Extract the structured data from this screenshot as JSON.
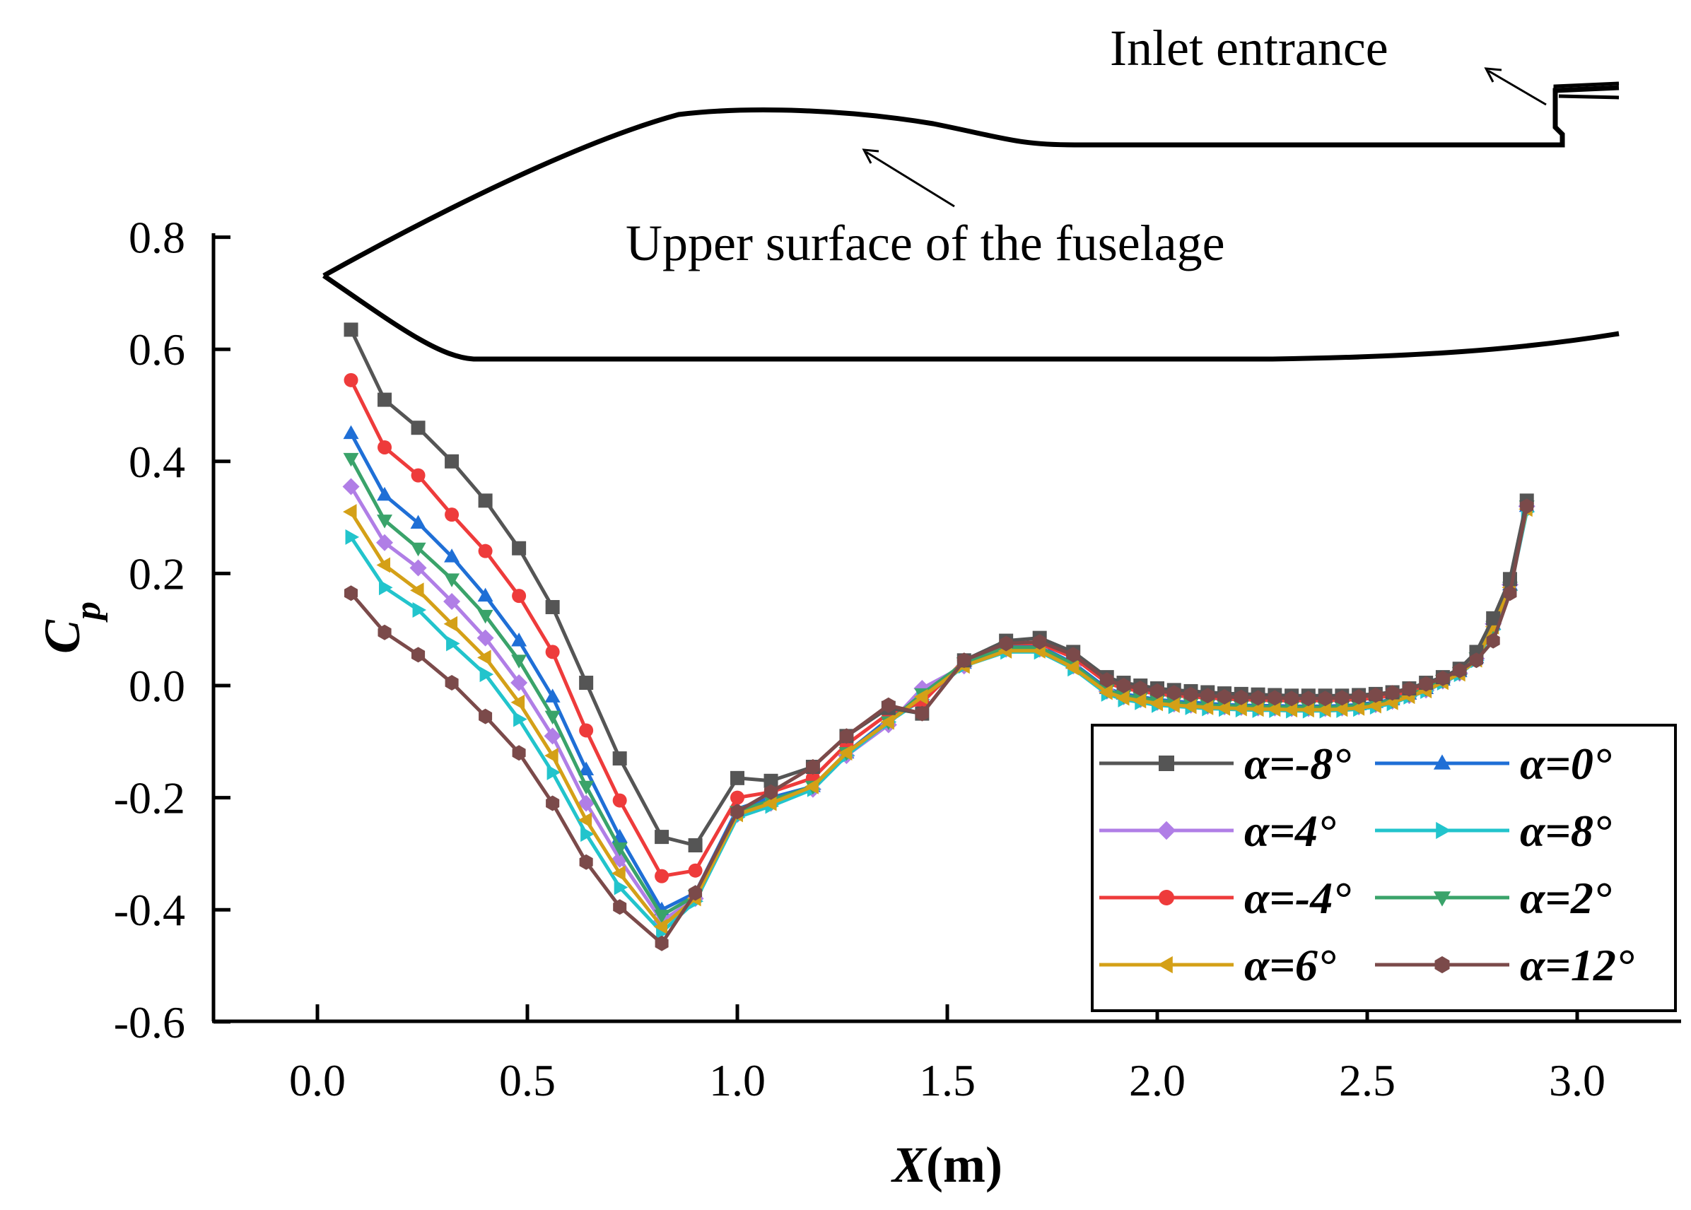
{
  "chart_data": {
    "type": "line",
    "title": "",
    "xlabel": "X(m)",
    "ylabel": "Cp",
    "xlim": [
      -0.25,
      3.25
    ],
    "ylim": [
      -0.6,
      0.8
    ],
    "xticks": [
      "0.0",
      "0.5",
      "1.0",
      "1.5",
      "2.0",
      "2.5",
      "3.0"
    ],
    "yticks": [
      "0.8",
      "0.6",
      "0.4",
      "0.2",
      "0.0",
      "-0.2",
      "-0.4",
      "-0.6"
    ],
    "annotations": {
      "upper_surface": "Upper surface of the fuselage",
      "inlet": "Inlet entrance"
    },
    "legend_position": "lower-right",
    "x": [
      0.08,
      0.16,
      0.24,
      0.32,
      0.4,
      0.48,
      0.56,
      0.64,
      0.72,
      0.82,
      0.9,
      1.0,
      1.08,
      1.18,
      1.26,
      1.36,
      1.44,
      1.54,
      1.64,
      1.72,
      1.8,
      1.88,
      1.92,
      1.96,
      2.0,
      2.04,
      2.08,
      2.12,
      2.16,
      2.2,
      2.24,
      2.28,
      2.32,
      2.36,
      2.4,
      2.44,
      2.48,
      2.52,
      2.56,
      2.6,
      2.64,
      2.68,
      2.72,
      2.76,
      2.8,
      2.84,
      2.88
    ],
    "series": [
      {
        "name": "α=-8°",
        "color": "#555555",
        "marker": "square",
        "values": [
          0.635,
          0.51,
          0.46,
          0.4,
          0.33,
          0.245,
          0.14,
          0.005,
          -0.13,
          -0.27,
          -0.285,
          -0.165,
          -0.17,
          -0.145,
          -0.09,
          -0.04,
          -0.05,
          0.045,
          0.08,
          0.085,
          0.06,
          0.015,
          0.005,
          0.0,
          -0.005,
          -0.008,
          -0.01,
          -0.012,
          -0.014,
          -0.015,
          -0.016,
          -0.017,
          -0.018,
          -0.018,
          -0.018,
          -0.018,
          -0.017,
          -0.015,
          -0.012,
          -0.005,
          0.005,
          0.015,
          0.03,
          0.06,
          0.12,
          0.19,
          0.33
        ]
      },
      {
        "name": "α=0°",
        "color": "#1f6fd6",
        "marker": "triangle-up",
        "values": [
          0.45,
          0.34,
          0.29,
          0.23,
          0.16,
          0.08,
          -0.02,
          -0.15,
          -0.27,
          -0.4,
          -0.37,
          -0.22,
          -0.2,
          -0.18,
          -0.12,
          -0.06,
          -0.02,
          0.04,
          0.07,
          0.07,
          0.04,
          -0.005,
          -0.015,
          -0.02,
          -0.025,
          -0.028,
          -0.03,
          -0.032,
          -0.034,
          -0.035,
          -0.036,
          -0.036,
          -0.037,
          -0.037,
          -0.037,
          -0.036,
          -0.034,
          -0.03,
          -0.025,
          -0.015,
          -0.005,
          0.01,
          0.025,
          0.05,
          0.11,
          0.18,
          0.32
        ]
      },
      {
        "name": "α=4°",
        "color": "#b07ee6",
        "marker": "diamond",
        "values": [
          0.355,
          0.255,
          0.21,
          0.15,
          0.085,
          0.005,
          -0.09,
          -0.21,
          -0.31,
          -0.42,
          -0.38,
          -0.23,
          -0.21,
          -0.185,
          -0.125,
          -0.07,
          -0.005,
          0.035,
          0.065,
          0.065,
          0.035,
          -0.01,
          -0.02,
          -0.025,
          -0.03,
          -0.033,
          -0.035,
          -0.037,
          -0.038,
          -0.039,
          -0.04,
          -0.04,
          -0.041,
          -0.041,
          -0.041,
          -0.04,
          -0.038,
          -0.034,
          -0.028,
          -0.018,
          -0.008,
          0.008,
          0.022,
          0.048,
          0.11,
          0.18,
          0.32
        ]
      },
      {
        "name": "α=8°",
        "color": "#22c4cc",
        "marker": "triangle-right",
        "values": [
          0.265,
          0.175,
          0.135,
          0.075,
          0.02,
          -0.06,
          -0.155,
          -0.265,
          -0.36,
          -0.44,
          -0.385,
          -0.235,
          -0.215,
          -0.185,
          -0.125,
          -0.065,
          -0.025,
          0.035,
          0.06,
          0.06,
          0.03,
          -0.015,
          -0.025,
          -0.03,
          -0.035,
          -0.037,
          -0.039,
          -0.041,
          -0.042,
          -0.043,
          -0.044,
          -0.044,
          -0.045,
          -0.045,
          -0.045,
          -0.044,
          -0.042,
          -0.038,
          -0.032,
          -0.02,
          -0.01,
          0.005,
          0.02,
          0.045,
          0.1,
          0.17,
          0.31
        ]
      },
      {
        "name": "α=-4°",
        "color": "#ee3b3b",
        "marker": "circle",
        "values": [
          0.545,
          0.425,
          0.375,
          0.305,
          0.24,
          0.16,
          0.06,
          -0.08,
          -0.205,
          -0.34,
          -0.33,
          -0.2,
          -0.19,
          -0.165,
          -0.105,
          -0.05,
          -0.03,
          0.045,
          0.075,
          0.075,
          0.05,
          0.005,
          -0.005,
          -0.01,
          -0.015,
          -0.018,
          -0.02,
          -0.022,
          -0.024,
          -0.025,
          -0.026,
          -0.027,
          -0.027,
          -0.027,
          -0.027,
          -0.026,
          -0.025,
          -0.022,
          -0.018,
          -0.01,
          0.0,
          0.012,
          0.028,
          0.055,
          0.115,
          0.185,
          0.325
        ]
      },
      {
        "name": "α=2°",
        "color": "#3aa36a",
        "marker": "triangle-down",
        "values": [
          0.405,
          0.295,
          0.245,
          0.19,
          0.125,
          0.045,
          -0.055,
          -0.18,
          -0.29,
          -0.41,
          -0.375,
          -0.225,
          -0.205,
          -0.18,
          -0.12,
          -0.065,
          -0.015,
          0.04,
          0.068,
          0.068,
          0.038,
          -0.008,
          -0.018,
          -0.022,
          -0.027,
          -0.03,
          -0.033,
          -0.035,
          -0.036,
          -0.037,
          -0.038,
          -0.038,
          -0.039,
          -0.039,
          -0.039,
          -0.038,
          -0.036,
          -0.032,
          -0.026,
          -0.016,
          -0.006,
          0.009,
          0.023,
          0.049,
          0.105,
          0.175,
          0.32
        ]
      },
      {
        "name": "α=6°",
        "color": "#d4a017",
        "marker": "triangle-left",
        "values": [
          0.31,
          0.215,
          0.17,
          0.11,
          0.05,
          -0.03,
          -0.125,
          -0.24,
          -0.335,
          -0.43,
          -0.38,
          -0.23,
          -0.21,
          -0.18,
          -0.12,
          -0.065,
          -0.02,
          0.035,
          0.062,
          0.062,
          0.032,
          -0.012,
          -0.022,
          -0.027,
          -0.032,
          -0.035,
          -0.037,
          -0.039,
          -0.04,
          -0.041,
          -0.042,
          -0.042,
          -0.043,
          -0.043,
          -0.043,
          -0.042,
          -0.04,
          -0.036,
          -0.03,
          -0.019,
          -0.009,
          0.006,
          0.021,
          0.046,
          0.105,
          0.175,
          0.315
        ]
      },
      {
        "name": "α=12°",
        "color": "#7b4a4a",
        "marker": "hexagon",
        "values": [
          0.165,
          0.095,
          0.055,
          0.005,
          -0.055,
          -0.12,
          -0.21,
          -0.315,
          -0.395,
          -0.46,
          -0.37,
          -0.225,
          -0.19,
          -0.145,
          -0.09,
          -0.035,
          -0.05,
          0.045,
          0.075,
          0.078,
          0.055,
          0.01,
          0.0,
          -0.005,
          -0.01,
          -0.013,
          -0.016,
          -0.018,
          -0.02,
          -0.021,
          -0.022,
          -0.022,
          -0.023,
          -0.023,
          -0.023,
          -0.022,
          -0.02,
          -0.017,
          -0.013,
          -0.006,
          0.003,
          0.013,
          0.027,
          0.045,
          0.08,
          0.165,
          0.32
        ]
      }
    ]
  }
}
